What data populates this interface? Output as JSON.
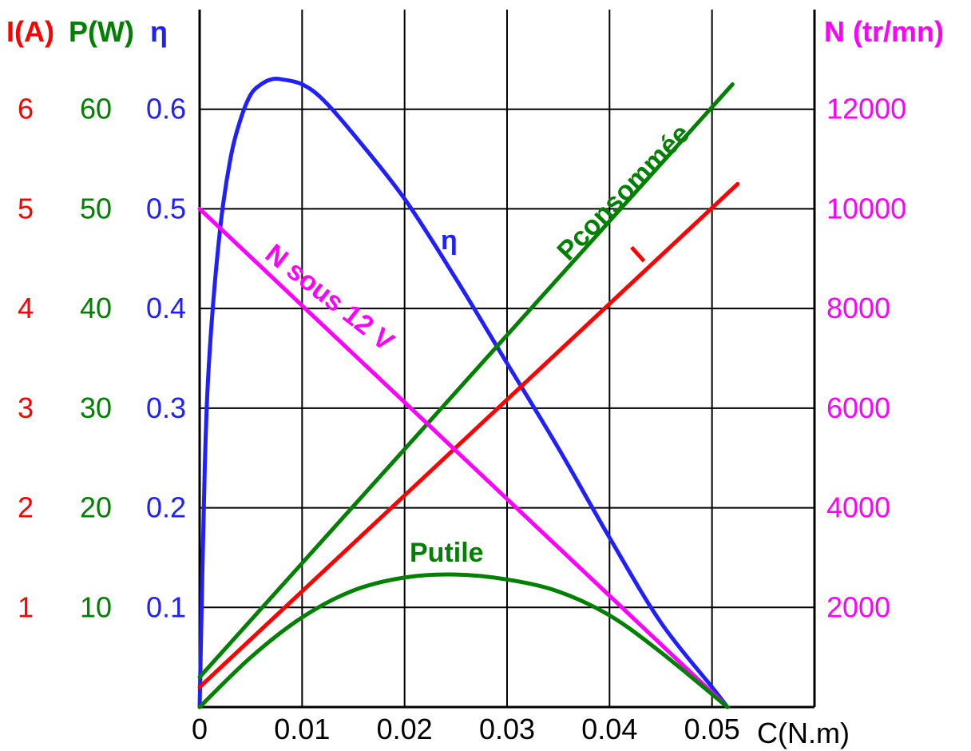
{
  "chart_data": {
    "type": "line",
    "xlabel": "C(N.m)",
    "xlim": [
      0,
      0.06
    ],
    "x_ticks": [
      "0",
      "0.01",
      "0.02",
      "0.03",
      "0.04",
      "0.05"
    ],
    "grid": true,
    "axes": {
      "I": {
        "label": "I(A)",
        "color": "#ff0000",
        "ticks": [
          "1",
          "2",
          "3",
          "4",
          "5",
          "6"
        ],
        "range": [
          0,
          7
        ]
      },
      "P": {
        "label": "P(W)",
        "color": "#008000",
        "ticks": [
          "10",
          "20",
          "30",
          "40",
          "50",
          "60"
        ],
        "range": [
          0,
          70
        ]
      },
      "eta": {
        "label": "η",
        "color": "#1f1fff",
        "ticks": [
          "0.1",
          "0.2",
          "0.3",
          "0.4",
          "0.5",
          "0.6"
        ],
        "range": [
          0,
          0.7
        ]
      },
      "N": {
        "label": "N (tr/mn)",
        "color": "#ff00ff",
        "ticks": [
          "2000",
          "4000",
          "6000",
          "8000",
          "10000",
          "12000"
        ],
        "range": [
          0,
          14000
        ]
      }
    },
    "series": [
      {
        "name": "η",
        "axis": "eta",
        "color": "#1f1fff",
        "x": [
          0,
          0.0005,
          0.001,
          0.002,
          0.003,
          0.004,
          0.005,
          0.006,
          0.007,
          0.008,
          0.01,
          0.012,
          0.015,
          0.02,
          0.025,
          0.03,
          0.035,
          0.04,
          0.045,
          0.05,
          0.0515
        ],
        "y": [
          0,
          0.24,
          0.36,
          0.48,
          0.55,
          0.59,
          0.615,
          0.625,
          0.63,
          0.63,
          0.625,
          0.61,
          0.575,
          0.51,
          0.43,
          0.345,
          0.26,
          0.17,
          0.085,
          0.02,
          0
        ]
      },
      {
        "name": "Pconsommée",
        "axis": "P",
        "color": "#008000",
        "x": [
          0,
          0.052
        ],
        "y": [
          3,
          62.5
        ]
      },
      {
        "name": "I",
        "axis": "I",
        "color": "#ff0000",
        "x": [
          0,
          0.0525
        ],
        "y": [
          0.2,
          5.25
        ]
      },
      {
        "name": "N sous 12 V",
        "axis": "N",
        "color": "#ff00ff",
        "x": [
          0,
          0.0515
        ],
        "y": [
          10000,
          0
        ]
      },
      {
        "name": "Putile",
        "axis": "P",
        "color": "#008000",
        "x": [
          0,
          0.005,
          0.01,
          0.015,
          0.02,
          0.025,
          0.03,
          0.035,
          0.04,
          0.045,
          0.0515
        ],
        "y": [
          0,
          5.0,
          9.0,
          11.7,
          13.0,
          13.3,
          12.8,
          11.6,
          9.2,
          5.5,
          0
        ]
      }
    ]
  }
}
